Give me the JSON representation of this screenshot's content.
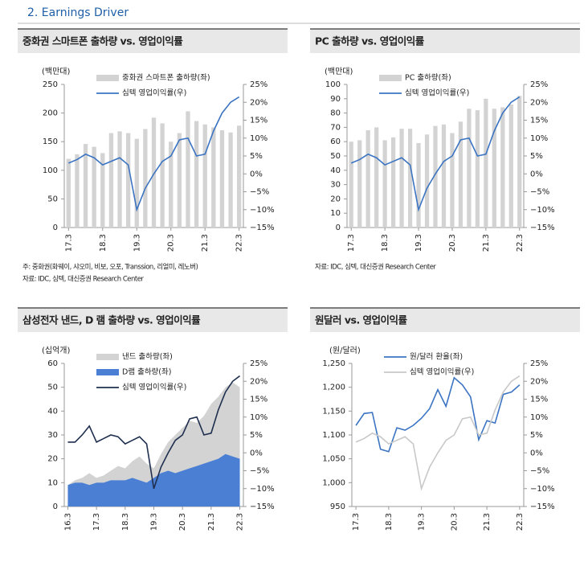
{
  "header": {
    "title": "2. Earnings Driver"
  },
  "chart_data": [
    {
      "type": "bar_line",
      "title": "중화권 스마트폰 출하량 vs. 영업이익률",
      "unit": "(백만대)",
      "notes": [
        "주: 중화권(화웨이, 샤오미, 비보, 오포, Transsion, 리얼미, 레노버)",
        "자료: IDC, 심텍, 대신증권 Research Center"
      ],
      "categories": [
        "17.3",
        null,
        null,
        null,
        "18.3",
        null,
        null,
        null,
        "19.3",
        null,
        null,
        null,
        "20.3",
        null,
        null,
        null,
        "21.3",
        null,
        null,
        null,
        "22.3"
      ],
      "series": [
        {
          "name": "중화권 스마트폰 출하량(좌)",
          "type": "bar",
          "axis": "y",
          "color": "#d3d3d3",
          "values": [
            120,
            128,
            146,
            141,
            130,
            165,
            168,
            165,
            155,
            172,
            192,
            182,
            150,
            165,
            203,
            186,
            180,
            175,
            170,
            166,
            178
          ]
        },
        {
          "name": "심텍 영업이익률(우)",
          "type": "line",
          "axis": "y2",
          "color": "#3b74c2",
          "values": [
            3,
            4,
            5.5,
            4.5,
            2.5,
            3.5,
            4.5,
            2.5,
            -10,
            -4,
            0,
            3.5,
            5,
            9.5,
            10,
            5,
            5.5,
            12,
            17,
            20,
            21.5
          ]
        }
      ],
      "ylim": [
        0,
        250
      ],
      "yticks": [
        0,
        50,
        100,
        150,
        200,
        250
      ],
      "y2lim": [
        -15,
        25
      ],
      "y2ticks": [
        {
          "value": -15,
          "label": "−15%"
        },
        {
          "value": -10,
          "label": "−10%"
        },
        {
          "value": -5,
          "label": "−5%"
        },
        {
          "value": 0,
          "label": "0%"
        },
        {
          "value": 5,
          "label": "5%"
        },
        {
          "value": 10,
          "label": "10%"
        },
        {
          "value": 15,
          "label": "15%"
        },
        {
          "value": 20,
          "label": "20%"
        },
        {
          "value": 25,
          "label": "25%"
        }
      ]
    },
    {
      "type": "bar_line",
      "title": "PC 출하량 vs. 영업이익률",
      "unit": "(백만대)",
      "notes": [
        "자료: IDC, 심텍, 대신증권 Research Center"
      ],
      "categories": [
        "17.3",
        null,
        null,
        null,
        "18.3",
        null,
        null,
        null,
        "19.3",
        null,
        null,
        null,
        "20.3",
        null,
        null,
        null,
        "21.3",
        null,
        null,
        null,
        "22.3"
      ],
      "series": [
        {
          "name": "PC 출하량(좌)",
          "type": "bar",
          "axis": "y",
          "color": "#d3d3d3",
          "values": [
            60,
            61,
            68,
            70,
            61,
            63,
            69,
            69,
            59,
            65,
            71,
            72,
            66,
            74,
            83,
            82,
            90,
            83,
            84,
            86,
            92
          ]
        },
        {
          "name": "심텍 영업이익률(우)",
          "type": "line",
          "axis": "y2",
          "color": "#3b74c2",
          "values": [
            3,
            4,
            5.5,
            4.5,
            2.5,
            3.5,
            4.5,
            2.5,
            -10,
            -4,
            0,
            3.5,
            5,
            9.5,
            10,
            5,
            5.5,
            12,
            17,
            20,
            21.5
          ]
        }
      ],
      "ylim": [
        0,
        100
      ],
      "yticks": [
        0,
        10,
        20,
        30,
        40,
        50,
        60,
        70,
        80,
        90,
        100
      ],
      "y2lim": [
        -15,
        25
      ],
      "y2ticks": [
        {
          "value": -15,
          "label": "−15%"
        },
        {
          "value": -10,
          "label": "−10%"
        },
        {
          "value": -5,
          "label": "−5%"
        },
        {
          "value": 0,
          "label": "0%"
        },
        {
          "value": 5,
          "label": "5%"
        },
        {
          "value": 10,
          "label": "10%"
        },
        {
          "value": 15,
          "label": "15%"
        },
        {
          "value": 20,
          "label": "20%"
        },
        {
          "value": 25,
          "label": "25%"
        }
      ]
    },
    {
      "type": "area_line",
      "title": "삼성전자 낸드, D 램 출하량 vs. 영업이익률",
      "unit": "(십억개)",
      "categories": [
        "16.3",
        null,
        null,
        null,
        "17.3",
        null,
        null,
        null,
        "18.3",
        null,
        null,
        null,
        "19.3",
        null,
        null,
        null,
        "20.3",
        null,
        null,
        null,
        "21.3",
        null,
        null,
        null,
        "22.3"
      ],
      "series": [
        {
          "name": "낸드 출하량(좌)",
          "type": "area",
          "axis": "y",
          "color": "#d3d3d3",
          "values": [
            9,
            11,
            12,
            14,
            12,
            13,
            15,
            17,
            16,
            19,
            21,
            18,
            16,
            22,
            27,
            30,
            33,
            36,
            35,
            38,
            43,
            46,
            50,
            52,
            50
          ]
        },
        {
          "name": "D램 출하량(좌)",
          "type": "area",
          "axis": "y",
          "color": "#4a7fd4",
          "values": [
            9,
            10,
            10,
            9,
            10,
            10,
            11,
            11,
            11,
            12,
            11,
            10,
            12,
            14,
            15,
            14,
            15,
            16,
            17,
            18,
            19,
            20,
            22,
            21,
            20
          ]
        },
        {
          "name": "심텍 영업이익률(우)",
          "type": "line",
          "axis": "y2",
          "color": "#1f2f4f",
          "values": [
            3,
            3,
            5,
            7.5,
            3,
            4,
            5,
            4.5,
            2.5,
            3.5,
            4.5,
            2.5,
            -10,
            -4,
            0,
            3.5,
            5,
            9.5,
            10,
            5,
            5.5,
            12,
            17,
            20,
            21.5
          ]
        }
      ],
      "ylim": [
        0,
        60
      ],
      "yticks": [
        0,
        10,
        20,
        30,
        40,
        50,
        60
      ],
      "y2lim": [
        -15,
        25
      ],
      "y2ticks": [
        {
          "value": -15,
          "label": "−15%"
        },
        {
          "value": -10,
          "label": "−10%"
        },
        {
          "value": -5,
          "label": "−5%"
        },
        {
          "value": 0,
          "label": "0%"
        },
        {
          "value": 5,
          "label": "5%"
        },
        {
          "value": 10,
          "label": "10%"
        },
        {
          "value": 15,
          "label": "15%"
        },
        {
          "value": 20,
          "label": "20%"
        },
        {
          "value": 25,
          "label": "25%"
        }
      ]
    },
    {
      "type": "line",
      "title": "원달러 vs. 영업이익률",
      "unit": "(원/달러)",
      "categories": [
        "17.3",
        null,
        null,
        null,
        "18.3",
        null,
        null,
        null,
        "19.3",
        null,
        null,
        null,
        "20.3",
        null,
        null,
        null,
        "21.3",
        null,
        null,
        null,
        "22.3"
      ],
      "series": [
        {
          "name": "원/달러 환율(좌)",
          "type": "line",
          "axis": "y",
          "color": "#3b74c2",
          "values": [
            1120,
            1145,
            1147,
            1070,
            1065,
            1115,
            1110,
            1120,
            1135,
            1155,
            1195,
            1160,
            1220,
            1205,
            1180,
            1090,
            1130,
            1125,
            1185,
            1190,
            1205
          ]
        },
        {
          "name": "심텍 영업이익률(우)",
          "type": "line",
          "axis": "y2",
          "color": "#c8c8c8",
          "values": [
            3,
            4,
            5.5,
            4.5,
            2.5,
            3.5,
            4.5,
            2.5,
            -10,
            -4,
            0,
            3.5,
            5,
            9.5,
            10,
            5,
            5.5,
            12,
            17,
            20,
            21.5
          ]
        }
      ],
      "ylim": [
        950,
        1250
      ],
      "yticks": [
        950,
        {
          "value": 1000,
          "label": "1,000"
        },
        {
          "value": 1050,
          "label": "1,050"
        },
        {
          "value": 1100,
          "label": "1,100"
        },
        {
          "value": 1150,
          "label": "1,150"
        },
        {
          "value": 1200,
          "label": "1,200"
        },
        {
          "value": 1250,
          "label": "1,250"
        }
      ],
      "y2lim": [
        -15,
        25
      ],
      "y2ticks": [
        {
          "value": -15,
          "label": "−15%"
        },
        {
          "value": -10,
          "label": "−10%"
        },
        {
          "value": -5,
          "label": "−5%"
        },
        {
          "value": 0,
          "label": "0%"
        },
        {
          "value": 5,
          "label": "5%"
        },
        {
          "value": 10,
          "label": "10%"
        },
        {
          "value": 15,
          "label": "15%"
        },
        {
          "value": 20,
          "label": "20%"
        },
        {
          "value": 25,
          "label": "25%"
        }
      ]
    }
  ]
}
